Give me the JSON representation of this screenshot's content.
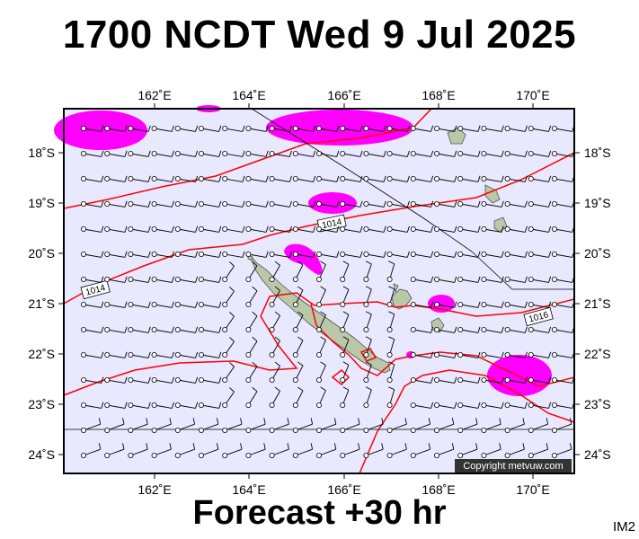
{
  "header": {
    "title": "1700 NCDT Wed 9 Jul 2025"
  },
  "footer": {
    "forecast": "Forecast +30 hr",
    "tag": "IM2"
  },
  "map": {
    "copyright": "Copyright metvuw.com",
    "lon_labels": [
      "162˚E",
      "164˚E",
      "166˚E",
      "168˚E",
      "170˚E"
    ],
    "lat_labels": [
      "18˚S",
      "19˚S",
      "20˚S",
      "21˚S",
      "22˚S",
      "23˚S",
      "24˚S"
    ],
    "isobar_labels": [
      "1014",
      "1014",
      "1016"
    ],
    "colors": {
      "background": "#e8e8ff",
      "isobar": "#ff0000",
      "high_wind": "#ff00ff",
      "land": "#b8c8a8"
    }
  }
}
